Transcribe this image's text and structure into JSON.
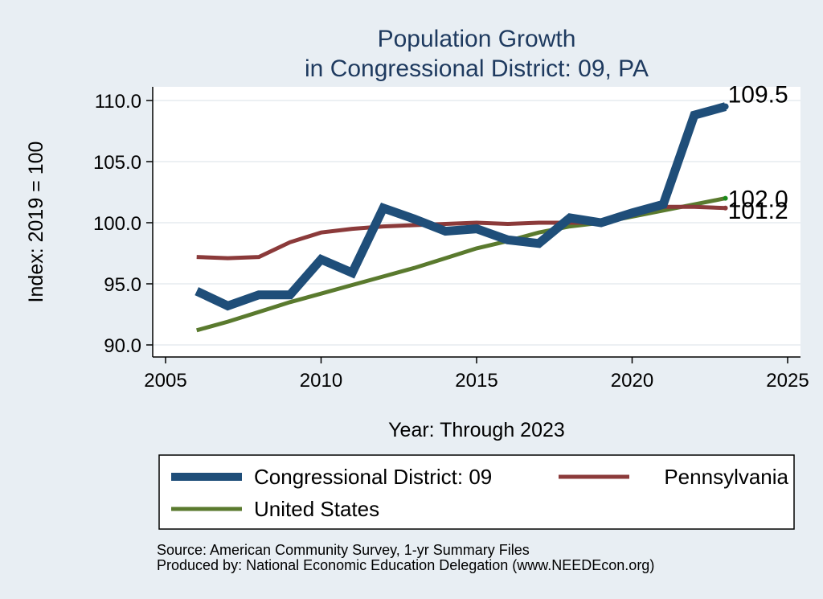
{
  "chart_data": {
    "type": "line",
    "title": "Population Growth",
    "subtitle": "in Congressional District: 09, PA",
    "xlabel": "Year: Through 2023",
    "ylabel": "Index: 2019 = 100",
    "xlim": [
      2005,
      2025
    ],
    "ylim": [
      90,
      110
    ],
    "xticks": [
      {
        "value": 2005,
        "label": "2005"
      },
      {
        "value": 2010,
        "label": "2010"
      },
      {
        "value": 2015,
        "label": "2015"
      },
      {
        "value": 2020,
        "label": "2020"
      },
      {
        "value": 2025,
        "label": "2025"
      }
    ],
    "yticks": [
      {
        "value": 90,
        "label": "90.0"
      },
      {
        "value": 95,
        "label": "95.0"
      },
      {
        "value": 100,
        "label": "100.0"
      },
      {
        "value": 105,
        "label": "105.0"
      },
      {
        "value": 110,
        "label": "110.0"
      }
    ],
    "grid": true,
    "legend_position": "bottom",
    "x": [
      2006,
      2007,
      2008,
      2009,
      2010,
      2011,
      2012,
      2013,
      2014,
      2015,
      2016,
      2017,
      2018,
      2019,
      2020,
      2021,
      2022,
      2023
    ],
    "series": [
      {
        "name": "Congressional District: 09",
        "color": "#1f4e79",
        "values": [
          94.4,
          93.2,
          94.1,
          94.1,
          97.0,
          95.9,
          101.2,
          100.3,
          99.3,
          99.5,
          98.6,
          98.3,
          100.4,
          100.0,
          100.8,
          101.5,
          108.8,
          109.5
        ],
        "end_label": "109.5"
      },
      {
        "name": "Pennsylvania",
        "color": "#8b3a3a",
        "values": [
          97.2,
          97.1,
          97.2,
          98.4,
          99.2,
          99.5,
          99.7,
          99.8,
          99.9,
          100.0,
          99.9,
          100.0,
          100.0,
          100.0,
          100.6,
          101.3,
          101.3,
          101.2
        ],
        "end_label": "101.2"
      },
      {
        "name": "United States",
        "color": "#5a7a2e",
        "values": [
          91.2,
          91.9,
          92.7,
          93.5,
          94.2,
          94.9,
          95.6,
          96.3,
          97.1,
          97.9,
          98.5,
          99.2,
          99.7,
          100.0,
          100.5,
          101.0,
          101.5,
          102.0
        ],
        "end_label": "102.0"
      }
    ]
  },
  "notes": {
    "source": "Source: American Community Survey, 1-yr Summary Files",
    "produced_by": "Produced by: National Economic Education Delegation (www.NEEDEcon.org)"
  }
}
